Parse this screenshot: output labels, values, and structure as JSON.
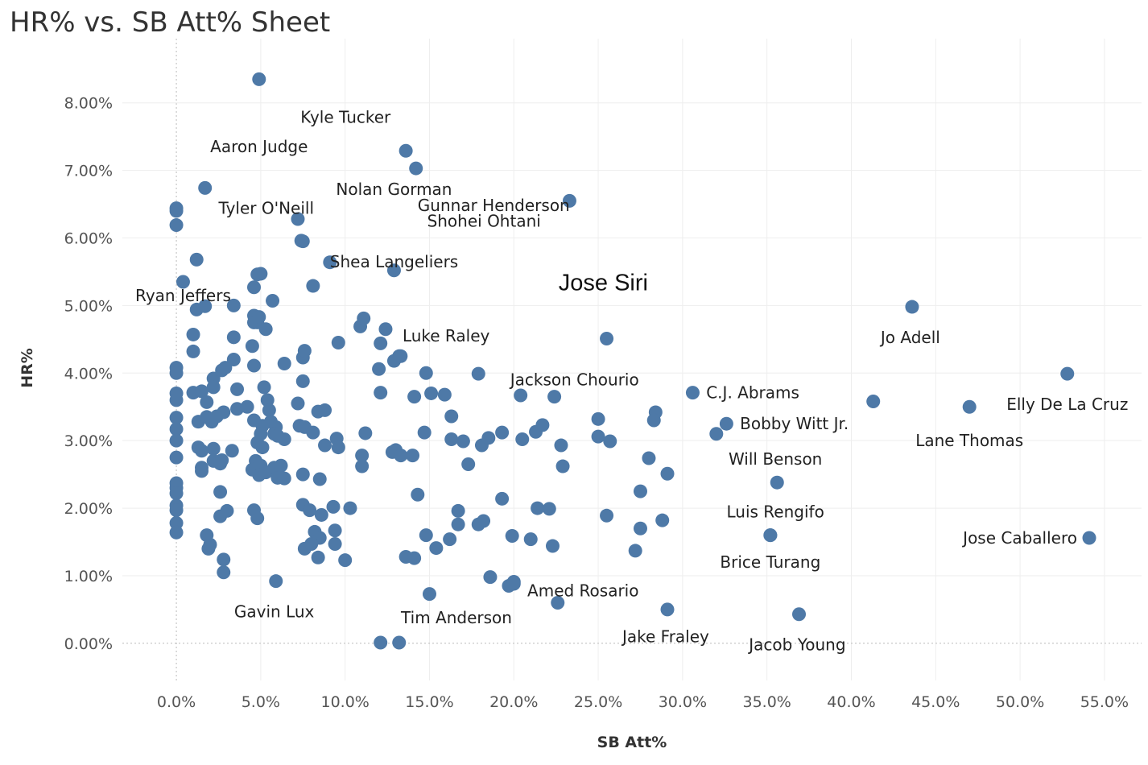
{
  "title": "HR% vs. SB Att% Sheet",
  "colors": {
    "point": "#4e79a7",
    "grid": "#eeeeee",
    "zero_line": "#bbbbbb"
  },
  "chart_data": {
    "type": "scatter",
    "title": "HR% vs. SB Att% Sheet",
    "xlabel": "SB Att%",
    "ylabel": "HR%",
    "xlim": [
      -3.2,
      57.2
    ],
    "ylim": [
      -0.55,
      8.95
    ],
    "x_ticks": [
      {
        "v": 0,
        "label": "0.0%"
      },
      {
        "v": 5,
        "label": "5.0%"
      },
      {
        "v": 10,
        "label": "10.0%"
      },
      {
        "v": 15,
        "label": "15.0%"
      },
      {
        "v": 20,
        "label": "20.0%"
      },
      {
        "v": 25,
        "label": "25.0%"
      },
      {
        "v": 30,
        "label": "30.0%"
      },
      {
        "v": 35,
        "label": "35.0%"
      },
      {
        "v": 40,
        "label": "40.0%"
      },
      {
        "v": 45,
        "label": "45.0%"
      },
      {
        "v": 50,
        "label": "50.0%"
      },
      {
        "v": 55,
        "label": "55.0%"
      }
    ],
    "y_ticks": [
      {
        "v": 0,
        "label": "0.00%"
      },
      {
        "v": 1,
        "label": "1.00%"
      },
      {
        "v": 2,
        "label": "2.00%"
      },
      {
        "v": 3,
        "label": "3.00%"
      },
      {
        "v": 4,
        "label": "4.00%"
      },
      {
        "v": 5,
        "label": "5.00%"
      },
      {
        "v": 6,
        "label": "6.00%"
      },
      {
        "v": 7,
        "label": "7.00%"
      },
      {
        "v": 8,
        "label": "8.00%"
      }
    ],
    "labeled_points": [
      {
        "name": "Aaron Judge",
        "x": 4.9,
        "y": 8.35,
        "dx": 0,
        "dy": 1.0,
        "anchor": "middle"
      },
      {
        "name": "Kyle Tucker",
        "x": 13.6,
        "y": 7.29,
        "dx": -0.9,
        "dy": -0.5,
        "anchor": "end"
      },
      {
        "name": "Gunnar Henderson",
        "x": 14.2,
        "y": 7.03,
        "dx": 0.1,
        "dy": 0.55,
        "anchor": "start"
      },
      {
        "name": "Tyler O'Neill",
        "x": 1.7,
        "y": 6.74,
        "dx": 0.8,
        "dy": 0.3,
        "anchor": "start"
      },
      {
        "name": "Shohei Ohtani",
        "x": 23.3,
        "y": 6.55,
        "dx": -1.7,
        "dy": 0.3,
        "anchor": "end"
      },
      {
        "name": "Shea Langeliers",
        "x": 7.5,
        "y": 5.95,
        "dx": 1.6,
        "dy": 0.3,
        "anchor": "start"
      },
      {
        "name": "Ryan Jeffers",
        "x": 0.4,
        "y": 5.35,
        "dx": 0.0,
        "dy": 0.2,
        "anchor": "middle"
      },
      {
        "name": "Nolan Gorman",
        "x": 12.9,
        "y": 5.52,
        "dx": 0.0,
        "dy": -1.2,
        "anchor": "middle"
      },
      {
        "name": "Jose Siri",
        "x": 25.5,
        "y": 4.51,
        "dx": -0.2,
        "dy": -0.8,
        "anchor": "middle",
        "big": true
      },
      {
        "name": "Luke Raley",
        "x": 13.3,
        "y": 4.25,
        "dx": 0.1,
        "dy": -0.3,
        "anchor": "start"
      },
      {
        "name": "Jo Adell",
        "x": 43.6,
        "y": 4.98,
        "dx": -0.1,
        "dy": 0.45,
        "anchor": "middle"
      },
      {
        "name": "Jackson Chourio",
        "x": 22.4,
        "y": 3.65,
        "dx": 1.2,
        "dy": -0.25,
        "anchor": "middle"
      },
      {
        "name": "Elly De La Cruz",
        "x": 52.8,
        "y": 3.99,
        "dx": 0.0,
        "dy": 0.45,
        "anchor": "middle"
      },
      {
        "name": "C.J. Abrams",
        "x": 30.6,
        "y": 3.71,
        "dx": 0.8,
        "dy": 0.0,
        "anchor": "start"
      },
      {
        "name": "Lane Thomas",
        "x": 47.0,
        "y": 3.5,
        "dx": 0.0,
        "dy": 0.5,
        "anchor": "middle"
      },
      {
        "name": "Bobby Witt Jr.",
        "x": 32.6,
        "y": 3.25,
        "dx": 0.8,
        "dy": 0.0,
        "anchor": "start"
      },
      {
        "name": "Will Benson",
        "x": 35.6,
        "y": 2.38,
        "dx": -0.1,
        "dy": -0.35,
        "anchor": "middle"
      },
      {
        "name": "Luis Rengifo",
        "x": 35.2,
        "y": 1.6,
        "dx": 0.3,
        "dy": -0.35,
        "anchor": "middle"
      },
      {
        "name": "Jose Caballero",
        "x": 54.1,
        "y": 1.56,
        "dx": -4.1,
        "dy": 0.0,
        "anchor": "middle"
      },
      {
        "name": "Brice Turang",
        "x": 35.2,
        "y": 1.6,
        "dx": 0.0,
        "dy": 0.4,
        "anchor": "middle"
      },
      {
        "name": "Amed Rosario",
        "x": 20.0,
        "y": 0.88,
        "dx": 0.8,
        "dy": 0.1,
        "anchor": "start"
      },
      {
        "name": "Gavin Lux",
        "x": 5.9,
        "y": 0.92,
        "dx": -0.1,
        "dy": 0.45,
        "anchor": "middle"
      },
      {
        "name": "Tim Anderson",
        "x": 15.0,
        "y": 0.73,
        "dx": 1.6,
        "dy": 0.35,
        "anchor": "middle"
      },
      {
        "name": "Jake Fraley",
        "x": 29.1,
        "y": 0.5,
        "dx": -0.1,
        "dy": 0.4,
        "anchor": "middle"
      },
      {
        "name": "Jacob Young",
        "x": 36.9,
        "y": 0.43,
        "dx": -0.1,
        "dy": 0.45,
        "anchor": "middle"
      }
    ],
    "other_points": [
      [
        0,
        6.44
      ],
      [
        0,
        6.4
      ],
      [
        0,
        6.19
      ],
      [
        0,
        4.08
      ],
      [
        0,
        4.0
      ],
      [
        0,
        3.7
      ],
      [
        0,
        3.6
      ],
      [
        0,
        3.34
      ],
      [
        0,
        3.17
      ],
      [
        0,
        3.0
      ],
      [
        0,
        2.75
      ],
      [
        0,
        2.37
      ],
      [
        0,
        2.3
      ],
      [
        0,
        2.22
      ],
      [
        0,
        2.04
      ],
      [
        0,
        1.97
      ],
      [
        0,
        1.78
      ],
      [
        0,
        1.64
      ],
      [
        1.2,
        5.68
      ],
      [
        1.0,
        4.57
      ],
      [
        1.0,
        4.32
      ],
      [
        1.2,
        4.94
      ],
      [
        1.7,
        4.99
      ],
      [
        1.0,
        3.71
      ],
      [
        1.5,
        3.73
      ],
      [
        1.3,
        3.28
      ],
      [
        1.3,
        2.9
      ],
      [
        1.5,
        2.85
      ],
      [
        1.5,
        2.55
      ],
      [
        1.5,
        2.6
      ],
      [
        1.8,
        1.6
      ],
      [
        1.9,
        1.4
      ],
      [
        2.0,
        1.46
      ],
      [
        2.2,
        3.92
      ],
      [
        2.2,
        3.79
      ],
      [
        1.8,
        3.57
      ],
      [
        1.8,
        3.35
      ],
      [
        2.1,
        3.28
      ],
      [
        2.4,
        3.36
      ],
      [
        2.2,
        2.88
      ],
      [
        2.2,
        2.7
      ],
      [
        2.7,
        2.71
      ],
      [
        2.6,
        2.66
      ],
      [
        2.6,
        2.24
      ],
      [
        2.6,
        1.88
      ],
      [
        3.0,
        1.96
      ],
      [
        2.8,
        1.24
      ],
      [
        2.8,
        1.05
      ],
      [
        2.7,
        4.04
      ],
      [
        2.9,
        4.08
      ],
      [
        2.8,
        3.42
      ],
      [
        3.4,
        4.53
      ],
      [
        3.4,
        4.2
      ],
      [
        3.4,
        5.0
      ],
      [
        3.6,
        3.76
      ],
      [
        3.6,
        3.47
      ],
      [
        3.3,
        2.85
      ],
      [
        4.2,
        3.5
      ],
      [
        4.6,
        3.3
      ],
      [
        4.5,
        4.4
      ],
      [
        4.6,
        4.11
      ],
      [
        4.6,
        4.85
      ],
      [
        4.6,
        4.75
      ],
      [
        4.8,
        4.75
      ],
      [
        4.9,
        4.83
      ],
      [
        4.6,
        5.27
      ],
      [
        4.8,
        5.46
      ],
      [
        5.0,
        5.47
      ],
      [
        5.3,
        4.65
      ],
      [
        5.7,
        5.07
      ],
      [
        5.2,
        3.79
      ],
      [
        5.4,
        3.6
      ],
      [
        5.5,
        3.45
      ],
      [
        5.1,
        3.22
      ],
      [
        5.0,
        3.1
      ],
      [
        4.8,
        2.97
      ],
      [
        5.1,
        2.9
      ],
      [
        4.7,
        2.7
      ],
      [
        4.5,
        2.57
      ],
      [
        5.0,
        2.63
      ],
      [
        4.9,
        2.49
      ],
      [
        5.3,
        2.53
      ],
      [
        5.6,
        3.28
      ],
      [
        5.9,
        3.2
      ],
      [
        5.8,
        3.1
      ],
      [
        6.0,
        3.07
      ],
      [
        6.4,
        3.02
      ],
      [
        5.8,
        2.6
      ],
      [
        6.0,
        2.45
      ],
      [
        6.2,
        2.63
      ],
      [
        6.4,
        2.44
      ],
      [
        4.6,
        1.97
      ],
      [
        4.8,
        1.85
      ],
      [
        6.4,
        4.14
      ],
      [
        7.2,
        6.28
      ],
      [
        7.4,
        5.96
      ],
      [
        8.1,
        5.29
      ],
      [
        9.1,
        5.64
      ],
      [
        7.5,
        4.23
      ],
      [
        7.5,
        3.88
      ],
      [
        7.2,
        3.55
      ],
      [
        7.3,
        3.22
      ],
      [
        7.6,
        3.2
      ],
      [
        8.1,
        3.12
      ],
      [
        8.4,
        3.43
      ],
      [
        8.8,
        3.45
      ],
      [
        7.6,
        4.33
      ],
      [
        9.6,
        4.45
      ],
      [
        7.5,
        2.5
      ],
      [
        8.5,
        2.43
      ],
      [
        7.5,
        2.05
      ],
      [
        7.9,
        1.97
      ],
      [
        8.6,
        1.9
      ],
      [
        9.3,
        2.02
      ],
      [
        8.2,
        1.65
      ],
      [
        8.5,
        1.56
      ],
      [
        7.6,
        1.4
      ],
      [
        8.0,
        1.47
      ],
      [
        8.4,
        1.27
      ],
      [
        8.8,
        2.93
      ],
      [
        9.5,
        3.03
      ],
      [
        9.6,
        2.9
      ],
      [
        9.4,
        1.67
      ],
      [
        9.4,
        1.47
      ],
      [
        10.0,
        1.23
      ],
      [
        10.3,
        2.0
      ],
      [
        10.9,
        4.69
      ],
      [
        11.1,
        4.81
      ],
      [
        11.2,
        3.11
      ],
      [
        11.0,
        2.78
      ],
      [
        11.0,
        2.62
      ],
      [
        12.1,
        4.44
      ],
      [
        12.0,
        4.06
      ],
      [
        12.1,
        3.71
      ],
      [
        12.4,
        4.65
      ],
      [
        12.9,
        4.18
      ],
      [
        13.2,
        4.25
      ],
      [
        12.8,
        2.83
      ],
      [
        13.0,
        2.86
      ],
      [
        13.3,
        2.78
      ],
      [
        14.0,
        2.78
      ],
      [
        14.1,
        3.65
      ],
      [
        14.3,
        2.2
      ],
      [
        14.7,
        3.12
      ],
      [
        14.8,
        4.0
      ],
      [
        15.1,
        3.7
      ],
      [
        15.9,
        3.68
      ],
      [
        16.3,
        3.36
      ],
      [
        16.3,
        3.02
      ],
      [
        17.0,
        2.99
      ],
      [
        17.3,
        2.65
      ],
      [
        16.7,
        1.96
      ],
      [
        16.7,
        1.76
      ],
      [
        16.2,
        1.54
      ],
      [
        15.4,
        1.41
      ],
      [
        14.8,
        1.6
      ],
      [
        13.6,
        1.28
      ],
      [
        14.1,
        1.26
      ],
      [
        17.9,
        3.99
      ],
      [
        18.1,
        2.93
      ],
      [
        18.5,
        3.04
      ],
      [
        19.3,
        3.12
      ],
      [
        19.3,
        2.14
      ],
      [
        17.9,
        1.76
      ],
      [
        18.2,
        1.81
      ],
      [
        18.6,
        0.98
      ],
      [
        19.7,
        0.85
      ],
      [
        20.0,
        0.91
      ],
      [
        19.9,
        1.59
      ],
      [
        20.4,
        3.67
      ],
      [
        20.5,
        3.02
      ],
      [
        21.3,
        3.13
      ],
      [
        21.7,
        3.23
      ],
      [
        22.8,
        2.93
      ],
      [
        22.9,
        2.62
      ],
      [
        21.4,
        2.0
      ],
      [
        22.1,
        1.99
      ],
      [
        21.0,
        1.54
      ],
      [
        22.3,
        1.44
      ],
      [
        22.6,
        0.6
      ],
      [
        25.0,
        3.32
      ],
      [
        25.0,
        3.06
      ],
      [
        25.7,
        2.99
      ],
      [
        25.5,
        1.89
      ],
      [
        28.4,
        3.42
      ],
      [
        28.3,
        3.3
      ],
      [
        28.0,
        2.74
      ],
      [
        29.1,
        2.51
      ],
      [
        27.5,
        2.25
      ],
      [
        27.5,
        1.7
      ],
      [
        28.8,
        1.82
      ],
      [
        27.2,
        1.37
      ],
      [
        32.0,
        3.1
      ],
      [
        41.3,
        3.58
      ],
      [
        12.1,
        0.01
      ],
      [
        13.2,
        0.01
      ]
    ]
  }
}
